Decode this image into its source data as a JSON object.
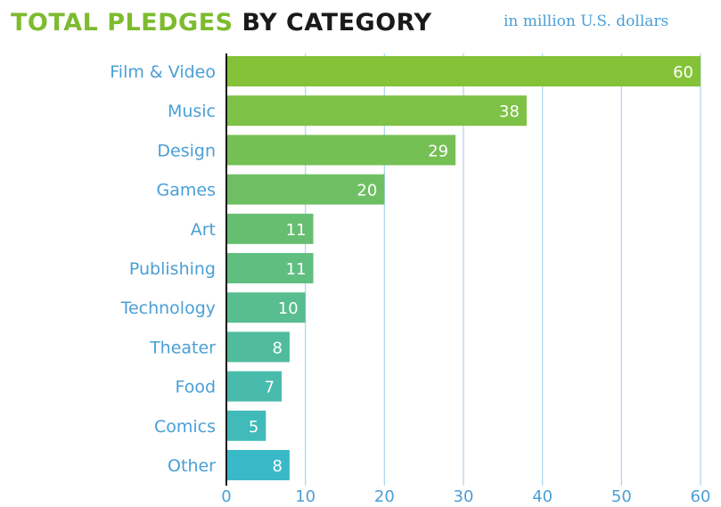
{
  "title": {
    "part1": "TOTAL PLEDGES",
    "part2": "BY CATEGORY"
  },
  "subtitle": "in million U.S. dollars",
  "chart_data": {
    "type": "bar",
    "orientation": "horizontal",
    "title": "TOTAL PLEDGES BY CATEGORY",
    "subtitle": "in million U.S. dollars",
    "categories": [
      "Film & Video",
      "Music",
      "Design",
      "Games",
      "Art",
      "Publishing",
      "Technology",
      "Theater",
      "Food",
      "Comics",
      "Other"
    ],
    "values": [
      60,
      38,
      29,
      20,
      11,
      11,
      10,
      8,
      7,
      5,
      8
    ],
    "xlim": [
      0,
      60
    ],
    "xticks": [
      0,
      10,
      20,
      30,
      40,
      50,
      60
    ],
    "grid": "vertical",
    "data_labels": true,
    "colors": {
      "top": "#84c237",
      "bottom": "#3ab9c9",
      "label": "#ffffff",
      "category_text": "#4a9fd6",
      "tick_text": "#4a9fd6",
      "grid": "#a9d3ee",
      "axis": "#111111"
    }
  }
}
